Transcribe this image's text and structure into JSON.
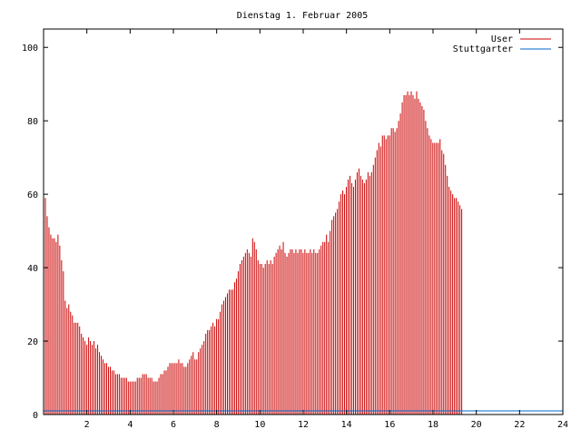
{
  "chart_data": {
    "type": "bar",
    "title": "Dienstag 1. Februar 2005",
    "xlabel": "",
    "ylabel": "",
    "xlim": [
      0,
      24
    ],
    "ylim": [
      0,
      105
    ],
    "x_ticks": [
      2,
      4,
      6,
      8,
      10,
      12,
      14,
      16,
      18,
      20,
      22,
      24
    ],
    "y_ticks": [
      0,
      20,
      40,
      60,
      80,
      100
    ],
    "grid": false,
    "legend_position": "top-right",
    "colors": {
      "user": "#cc0000",
      "stuttgarter": "#0066cc"
    },
    "series": [
      {
        "name": "User",
        "color": "#cc0000",
        "x_start": 0,
        "x_step": 0.0833,
        "values": [
          61,
          59,
          54,
          51,
          49,
          48,
          48,
          47,
          49,
          46,
          42,
          39,
          31,
          29,
          30,
          28,
          27,
          25,
          25,
          25,
          24,
          22,
          21,
          20,
          19,
          21,
          20,
          19,
          20,
          18,
          19,
          17,
          16,
          15,
          14,
          14,
          13,
          13,
          12,
          12,
          11,
          11,
          11,
          10,
          10,
          10,
          10,
          9,
          9,
          9,
          9,
          9,
          10,
          10,
          10,
          11,
          11,
          11,
          10,
          10,
          10,
          9,
          9,
          9,
          10,
          11,
          11,
          12,
          12,
          13,
          14,
          14,
          14,
          14,
          14,
          15,
          14,
          14,
          13,
          13,
          14,
          15,
          16,
          17,
          15,
          15,
          17,
          18,
          19,
          20,
          22,
          23,
          23,
          24,
          25,
          24,
          26,
          26,
          28,
          30,
          31,
          32,
          33,
          34,
          34,
          34,
          36,
          37,
          39,
          41,
          42,
          43,
          44,
          45,
          44,
          43,
          48,
          47,
          45,
          42,
          41,
          41,
          40,
          41,
          42,
          41,
          42,
          41,
          43,
          44,
          45,
          46,
          45,
          47,
          44,
          43,
          44,
          45,
          45,
          44,
          45,
          44,
          45,
          45,
          44,
          45,
          44,
          44,
          45,
          44,
          45,
          44,
          44,
          45,
          46,
          47,
          47,
          49,
          47,
          50,
          53,
          54,
          55,
          56,
          58,
          60,
          61,
          60,
          62,
          64,
          65,
          63,
          62,
          64,
          66,
          67,
          65,
          64,
          63,
          64,
          66,
          65,
          66,
          68,
          70,
          72,
          74,
          73,
          76,
          76,
          75,
          76,
          76,
          78,
          78,
          77,
          78,
          80,
          82,
          85,
          87,
          87,
          88,
          87,
          88,
          87,
          86,
          88,
          86,
          85,
          84,
          83,
          80,
          78,
          76,
          75,
          74,
          74,
          74,
          74,
          75,
          72,
          71,
          68,
          65,
          62,
          61,
          60,
          59,
          59,
          58,
          57,
          56
        ]
      },
      {
        "name": "Stuttgarter",
        "color": "#0066cc",
        "x_start": 0,
        "x_step": 0.0833,
        "values_constant": 1
      }
    ]
  }
}
